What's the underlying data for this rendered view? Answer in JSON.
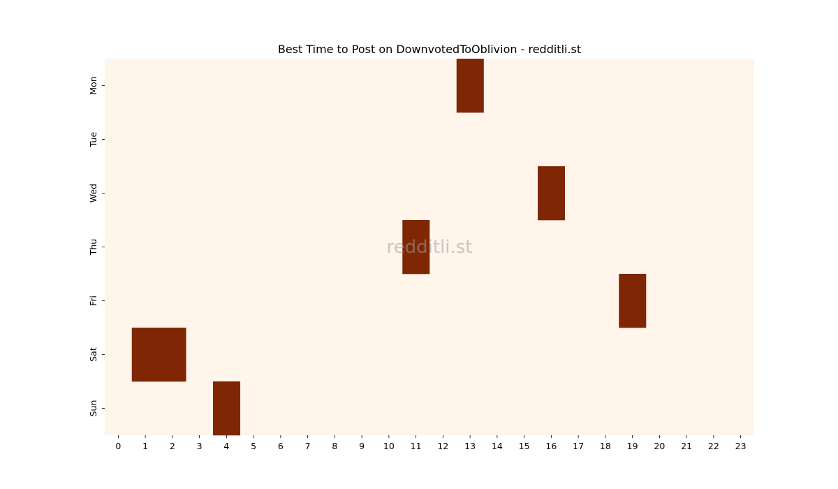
{
  "chart_data": {
    "type": "heatmap",
    "title": "Best Time to Post on DownvotedToOblivion - redditli.st",
    "xlabel": "",
    "ylabel": "",
    "x": [
      0,
      1,
      2,
      3,
      4,
      5,
      6,
      7,
      8,
      9,
      10,
      11,
      12,
      13,
      14,
      15,
      16,
      17,
      18,
      19,
      20,
      21,
      22,
      23
    ],
    "y": [
      "Mon",
      "Tue",
      "Wed",
      "Thu",
      "Fri",
      "Sat",
      "Sun"
    ],
    "cells": [
      {
        "day": "Mon",
        "hour": 13,
        "value": 1
      },
      {
        "day": "Wed",
        "hour": 16,
        "value": 1
      },
      {
        "day": "Thu",
        "hour": 11,
        "value": 1
      },
      {
        "day": "Fri",
        "hour": 19,
        "value": 1
      },
      {
        "day": "Sat",
        "hour": 1,
        "value": 1
      },
      {
        "day": "Sat",
        "hour": 2,
        "value": 1
      },
      {
        "day": "Sun",
        "hour": 4,
        "value": 1
      }
    ],
    "value_range": [
      0,
      1
    ],
    "colorscale": {
      "low": "#fff5eb",
      "high": "#7f2704"
    },
    "colorbar": false,
    "grid": false,
    "watermark": "redditli.st"
  }
}
